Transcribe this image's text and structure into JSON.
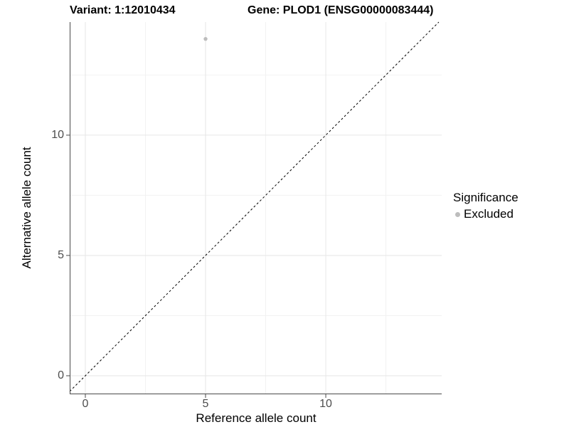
{
  "header": {
    "title_variant": "Variant: 1:12010434",
    "title_gene": "Gene: PLOD1 (ENSG00000083444)"
  },
  "chart_data": {
    "type": "scatter",
    "xlabel": "Reference allele count",
    "ylabel": "Alternative allele count",
    "xlim": [
      -0.65,
      14.82
    ],
    "ylim": [
      -0.74,
      14.7
    ],
    "x_ticks": [
      0,
      5,
      10
    ],
    "y_ticks": [
      0,
      5,
      10
    ],
    "x_minor_ticks": [
      2.5,
      7.5,
      12.5
    ],
    "y_minor_ticks": [
      2.5,
      7.5,
      12.5
    ],
    "grid": true,
    "points": [
      {
        "x": 5,
        "y": 14,
        "series": "Excluded"
      }
    ],
    "point_radius": 2.7,
    "reference_line": {
      "slope": 1,
      "intercept": 0,
      "style": "dashed",
      "color": "#000000"
    },
    "legend": {
      "title": "Significance",
      "position": "right",
      "entries": [
        {
          "label": "Excluded",
          "color": "#bdbdbd"
        }
      ]
    },
    "colors": {
      "point": "#bdbdbd",
      "grid_major": "#e6e6e6",
      "grid_minor": "#f2f2f2",
      "axis_line": "#4a4a4a",
      "tick_mark": "#4a4a4a",
      "tick_label": "#4d4d4d"
    }
  }
}
